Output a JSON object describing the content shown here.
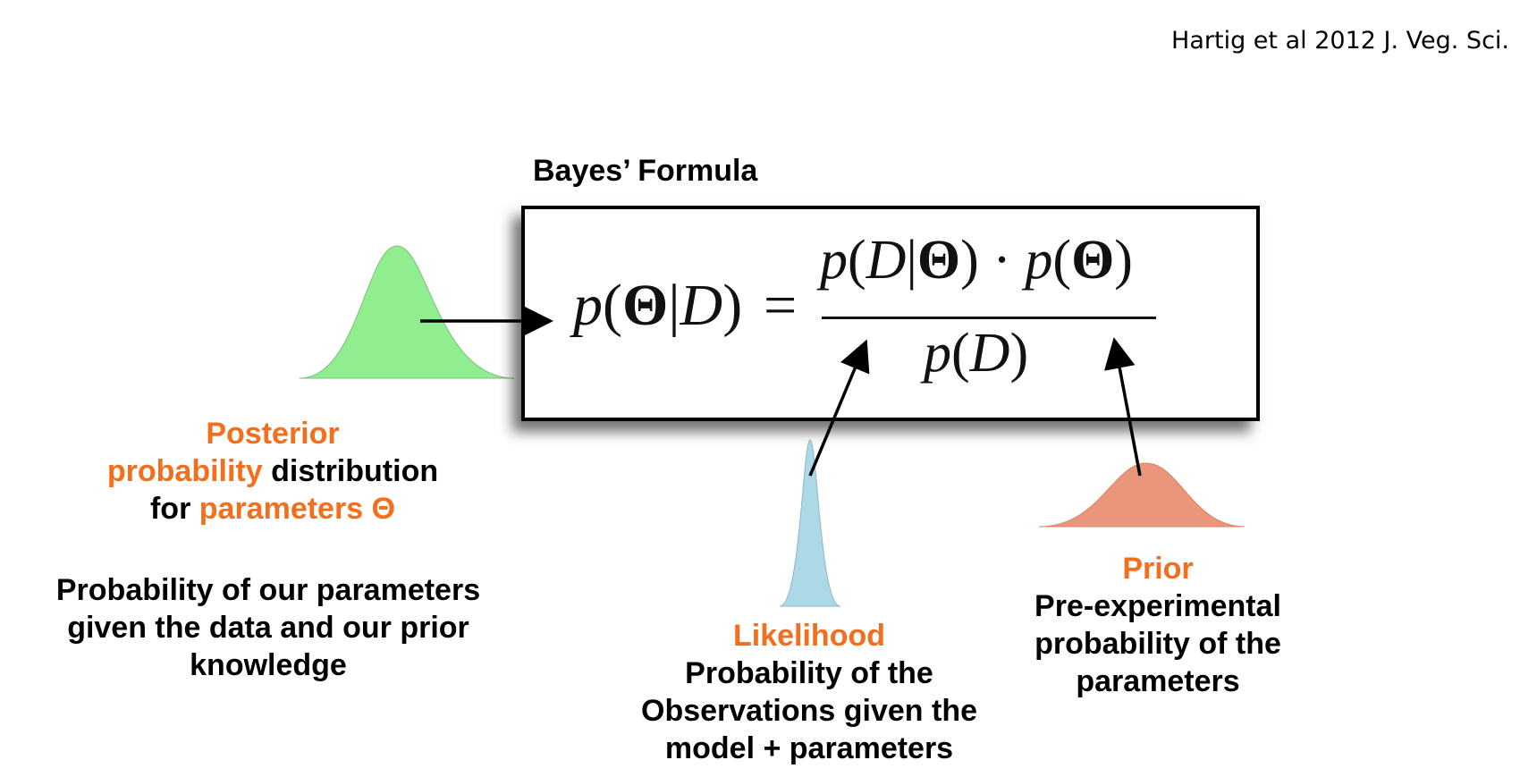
{
  "citation": "Hartig et al 2012 J. Veg. Sci.",
  "box_title": "Bayes’ Formula",
  "formula": {
    "p": "p",
    "theta": "Θ",
    "data": "D",
    "bar": "|",
    "lparen": "(",
    "rparen": ")",
    "equals": "=",
    "dot": "·"
  },
  "posterior": {
    "heading_orange": "Posterior",
    "line2_orange": "probability",
    "line2_black": " distribution",
    "line3_black": "for ",
    "line3_orange": "parameters Θ",
    "description": [
      "Probability of our parameters",
      "given the data and our prior",
      "knowledge"
    ]
  },
  "likelihood": {
    "heading": "Likelihood",
    "description": [
      "Probability of the",
      "Observations given the",
      "model + parameters"
    ]
  },
  "prior": {
    "heading": "Prior",
    "description": [
      "Pre-experimental",
      "probability of the",
      "parameters"
    ]
  },
  "colors": {
    "accent_orange": "#f36f1d",
    "posterior_fill": "#90ee90",
    "likelihood_fill": "#add8e6",
    "prior_fill": "#e9967a"
  }
}
